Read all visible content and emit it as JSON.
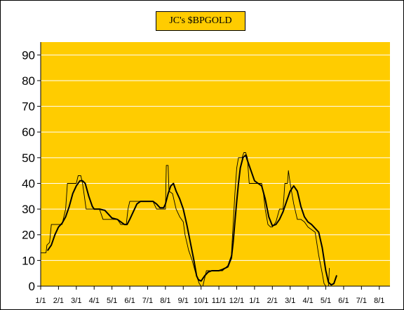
{
  "colors": {
    "plot_background": "#FFCC00",
    "title_background": "#FFCC00",
    "gridline": "#FFFFFF",
    "series_line": "#000000"
  },
  "chart_data": {
    "type": "line",
    "title": "JC's $BPGOLD",
    "xlabel": "",
    "ylabel": "",
    "x_ticks": [
      "1/1",
      "2/1",
      "3/1",
      "4/1",
      "5/1",
      "6/1",
      "7/1",
      "8/1",
      "9/1",
      "10/1",
      "11/1",
      "12/1",
      "1/1",
      "2/1",
      "3/1",
      "4/1",
      "5/1",
      "6/1",
      "7/1",
      "8/1"
    ],
    "x_range_months": [
      0,
      19.6
    ],
    "ylim": [
      0,
      95
    ],
    "y_ticks": [
      0,
      10,
      20,
      30,
      40,
      50,
      60,
      70,
      80,
      90
    ],
    "grid": "horizontal",
    "legend": "none",
    "series": [
      {
        "style": "step-thin",
        "points": [
          [
            0.0,
            13
          ],
          [
            0.3,
            13
          ],
          [
            0.35,
            16
          ],
          [
            0.5,
            17
          ],
          [
            0.6,
            24
          ],
          [
            0.75,
            24
          ],
          [
            1.0,
            24
          ],
          [
            1.2,
            24
          ],
          [
            1.3,
            27
          ],
          [
            1.4,
            30
          ],
          [
            1.5,
            40
          ],
          [
            1.7,
            40
          ],
          [
            2.0,
            40
          ],
          [
            2.1,
            43
          ],
          [
            2.25,
            43
          ],
          [
            2.35,
            40
          ],
          [
            2.45,
            35
          ],
          [
            2.55,
            30
          ],
          [
            2.8,
            30
          ],
          [
            3.0,
            30
          ],
          [
            3.3,
            30
          ],
          [
            3.5,
            26
          ],
          [
            3.8,
            26
          ],
          [
            4.0,
            26
          ],
          [
            4.3,
            26
          ],
          [
            4.5,
            24
          ],
          [
            4.8,
            24
          ],
          [
            4.9,
            30
          ],
          [
            5.0,
            33
          ],
          [
            5.3,
            33
          ],
          [
            5.6,
            33
          ],
          [
            6.0,
            33
          ],
          [
            6.3,
            33
          ],
          [
            6.5,
            30
          ],
          [
            6.9,
            30
          ],
          [
            7.0,
            30
          ],
          [
            7.05,
            47
          ],
          [
            7.15,
            47
          ],
          [
            7.2,
            37
          ],
          [
            7.4,
            36
          ],
          [
            7.6,
            30
          ],
          [
            7.8,
            27
          ],
          [
            8.0,
            25
          ],
          [
            8.1,
            20
          ],
          [
            8.3,
            14
          ],
          [
            8.5,
            10
          ],
          [
            8.7,
            5
          ],
          [
            8.9,
            1
          ],
          [
            9.0,
            0
          ],
          [
            9.1,
            0
          ],
          [
            9.3,
            6
          ],
          [
            9.5,
            6
          ],
          [
            9.8,
            6
          ],
          [
            10.0,
            6
          ],
          [
            10.2,
            6
          ],
          [
            10.5,
            8
          ],
          [
            10.7,
            12
          ],
          [
            10.8,
            24
          ],
          [
            10.9,
            36
          ],
          [
            11.0,
            46
          ],
          [
            11.1,
            50
          ],
          [
            11.3,
            50
          ],
          [
            11.4,
            52
          ],
          [
            11.5,
            52
          ],
          [
            11.6,
            50
          ],
          [
            11.7,
            40
          ],
          [
            11.9,
            40
          ],
          [
            12.0,
            40
          ],
          [
            12.2,
            40
          ],
          [
            12.4,
            40
          ],
          [
            12.5,
            36
          ],
          [
            12.6,
            30
          ],
          [
            12.75,
            24
          ],
          [
            12.9,
            23
          ],
          [
            13.0,
            23
          ],
          [
            13.2,
            25
          ],
          [
            13.4,
            30
          ],
          [
            13.6,
            30
          ],
          [
            13.7,
            40
          ],
          [
            13.85,
            40
          ],
          [
            13.9,
            45
          ],
          [
            14.0,
            40
          ],
          [
            14.2,
            32
          ],
          [
            14.4,
            26
          ],
          [
            14.6,
            26
          ],
          [
            14.8,
            25
          ],
          [
            15.0,
            23
          ],
          [
            15.2,
            22
          ],
          [
            15.4,
            21
          ],
          [
            15.6,
            12
          ],
          [
            15.8,
            5
          ],
          [
            15.9,
            1
          ],
          [
            16.0,
            0
          ],
          [
            16.15,
            0
          ],
          [
            16.2,
            7
          ]
        ]
      },
      {
        "style": "smooth-thick",
        "points": [
          [
            0.4,
            14
          ],
          [
            0.6,
            16
          ],
          [
            0.8,
            20
          ],
          [
            1.0,
            23
          ],
          [
            1.2,
            24.5
          ],
          [
            1.4,
            27
          ],
          [
            1.6,
            31
          ],
          [
            1.8,
            36
          ],
          [
            2.0,
            39
          ],
          [
            2.2,
            41
          ],
          [
            2.35,
            41
          ],
          [
            2.5,
            40
          ],
          [
            2.7,
            35
          ],
          [
            2.9,
            31
          ],
          [
            3.0,
            30
          ],
          [
            3.3,
            30
          ],
          [
            3.6,
            29.5
          ],
          [
            3.8,
            28
          ],
          [
            4.0,
            26.5
          ],
          [
            4.3,
            26
          ],
          [
            4.5,
            25
          ],
          [
            4.7,
            24
          ],
          [
            4.85,
            24
          ],
          [
            5.0,
            26
          ],
          [
            5.2,
            29
          ],
          [
            5.4,
            32
          ],
          [
            5.6,
            33
          ],
          [
            6.0,
            33
          ],
          [
            6.3,
            33
          ],
          [
            6.5,
            32
          ],
          [
            6.7,
            30.5
          ],
          [
            6.9,
            30.5
          ],
          [
            7.0,
            32
          ],
          [
            7.15,
            36
          ],
          [
            7.3,
            39
          ],
          [
            7.45,
            40
          ],
          [
            7.6,
            37
          ],
          [
            7.8,
            34
          ],
          [
            8.0,
            30
          ],
          [
            8.2,
            24
          ],
          [
            8.4,
            17
          ],
          [
            8.6,
            10
          ],
          [
            8.75,
            4
          ],
          [
            8.85,
            2.5
          ],
          [
            9.0,
            2
          ],
          [
            9.2,
            4
          ],
          [
            9.4,
            5.5
          ],
          [
            9.6,
            6
          ],
          [
            10.0,
            6
          ],
          [
            10.2,
            6.5
          ],
          [
            10.5,
            7.5
          ],
          [
            10.7,
            11
          ],
          [
            10.8,
            17
          ],
          [
            10.9,
            25
          ],
          [
            11.0,
            33
          ],
          [
            11.1,
            40
          ],
          [
            11.2,
            46
          ],
          [
            11.35,
            50
          ],
          [
            11.5,
            51
          ],
          [
            11.6,
            49
          ],
          [
            11.8,
            45
          ],
          [
            12.0,
            41
          ],
          [
            12.2,
            40
          ],
          [
            12.4,
            39
          ],
          [
            12.6,
            34
          ],
          [
            12.8,
            27
          ],
          [
            13.0,
            23.5
          ],
          [
            13.2,
            24
          ],
          [
            13.4,
            26
          ],
          [
            13.6,
            29
          ],
          [
            13.8,
            33
          ],
          [
            14.0,
            37
          ],
          [
            14.2,
            39
          ],
          [
            14.4,
            37
          ],
          [
            14.6,
            31
          ],
          [
            14.8,
            27
          ],
          [
            15.0,
            25
          ],
          [
            15.2,
            24
          ],
          [
            15.4,
            22.5
          ],
          [
            15.6,
            21
          ],
          [
            15.8,
            15
          ],
          [
            16.0,
            6
          ],
          [
            16.15,
            1.5
          ],
          [
            16.3,
            0.5
          ],
          [
            16.45,
            1
          ],
          [
            16.6,
            4
          ]
        ]
      }
    ]
  }
}
